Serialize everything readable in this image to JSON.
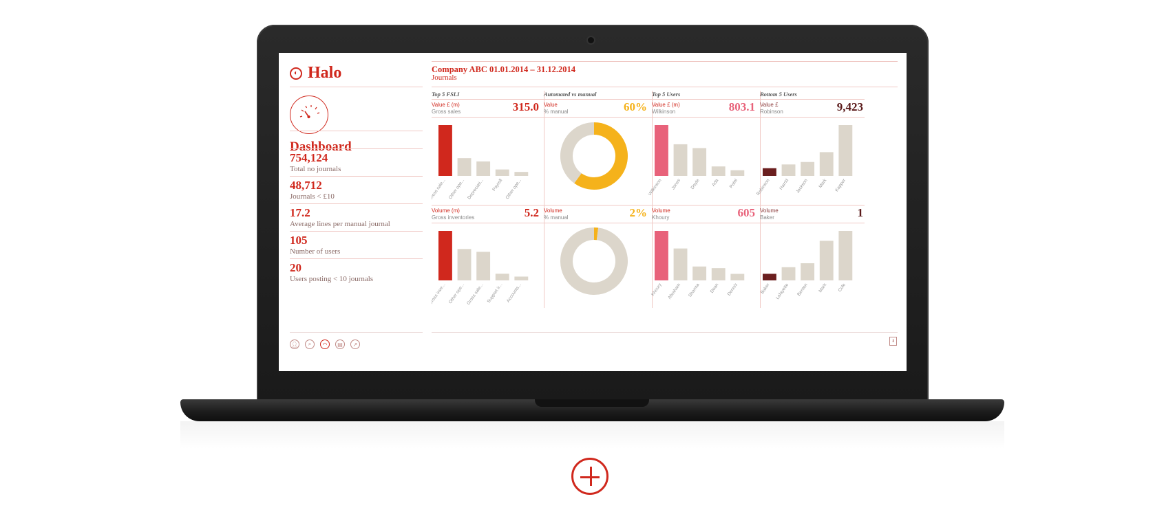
{
  "app": {
    "name": "Halo"
  },
  "header": {
    "title": "Company ABC 01.01.2014 – 31.12.2014",
    "subtitle": "Journals"
  },
  "sidebar": {
    "title": "Dashboard",
    "stats": [
      {
        "value": "754,124",
        "label": "Total no journals"
      },
      {
        "value": "48,712",
        "label": "Journals < £10"
      },
      {
        "value": "17.2",
        "label": "Average lines per manual journal"
      },
      {
        "value": "105",
        "label": "Number of users"
      },
      {
        "value": "20",
        "label": "Users posting < 10 journals"
      }
    ],
    "nav_icons": [
      "user-icon",
      "search-icon",
      "dashboard-icon",
      "document-icon",
      "export-icon"
    ],
    "active_nav": "dashboard-icon"
  },
  "panels": [
    {
      "title": "Top 5 FSLI",
      "top": {
        "label": "Value £ (m)",
        "sub": "Gross sales",
        "value": "315.0"
      },
      "bottom": {
        "label": "Volume (m)",
        "sub": "Gross inventories",
        "value": "5.2"
      }
    },
    {
      "title": "Automated vs manual",
      "top": {
        "label": "Value",
        "sub": "% manual",
        "value": "60%"
      },
      "bottom": {
        "label": "Volume",
        "sub": "% manual",
        "value": "2%"
      }
    },
    {
      "title": "Top 5 Users",
      "top": {
        "label": "Value £ (m)",
        "sub": "Wilkinson",
        "value": "803.1"
      },
      "bottom": {
        "label": "Volume",
        "sub": "Khoury",
        "value": "605"
      }
    },
    {
      "title": "Bottom 5 Users",
      "top": {
        "label": "Value £",
        "sub": "Robinson",
        "value": "9,423"
      },
      "bottom": {
        "label": "Volume",
        "sub": "Baker",
        "value": "1"
      }
    }
  ],
  "colors": {
    "accent": "#d0281d",
    "gold": "#f5b21b",
    "pink": "#e8627a",
    "maroon": "#6b1f1f",
    "neutral": "#dcd6cb",
    "dark_maroon": "#5a1a1a"
  },
  "chart_data": [
    {
      "id": "fsli-value",
      "type": "bar",
      "categories": [
        "Gross sale...",
        "Other ope...",
        "Depreciati...",
        "Payroll",
        "Other ope..."
      ],
      "values": [
        315,
        110,
        90,
        40,
        25
      ],
      "highlight_color": "#d0281d"
    },
    {
      "id": "auto-value",
      "type": "pie",
      "categories": [
        "manual",
        "automated"
      ],
      "values": [
        60,
        40
      ],
      "colors": [
        "#f5b21b",
        "#dcd6cb"
      ]
    },
    {
      "id": "users-value",
      "type": "bar",
      "categories": [
        "Wilkinson",
        "Jones",
        "Doyle",
        "Ada",
        "Patel"
      ],
      "values": [
        803,
        500,
        440,
        150,
        90
      ],
      "highlight_color": "#e8627a"
    },
    {
      "id": "bottom-value",
      "type": "bar",
      "categories": [
        "Robinson",
        "Harrid",
        "Jackson",
        "Mark",
        "Kappor"
      ],
      "values": [
        9423,
        14000,
        17000,
        29000,
        62000
      ],
      "highlight_color": "#6b1f1f"
    },
    {
      "id": "fsli-volume",
      "type": "bar",
      "categories": [
        "Gross inve...",
        "Other ope...",
        "Gross sale...",
        "Support ir...",
        "Accounts..."
      ],
      "values": [
        5.2,
        3.3,
        3.0,
        0.7,
        0.4
      ],
      "highlight_color": "#d0281d"
    },
    {
      "id": "auto-volume",
      "type": "pie",
      "categories": [
        "manual",
        "automated"
      ],
      "values": [
        2,
        98
      ],
      "colors": [
        "#f5b21b",
        "#dcd6cb"
      ]
    },
    {
      "id": "users-volume",
      "type": "bar",
      "categories": [
        "Khoury",
        "Abraham",
        "Sharma",
        "Doan",
        "Dennis"
      ],
      "values": [
        605,
        390,
        170,
        150,
        80
      ],
      "highlight_color": "#e8627a"
    },
    {
      "id": "bottom-volume",
      "type": "bar",
      "categories": [
        "Baker",
        "Lafayette",
        "Benton",
        "Mark",
        "Cole"
      ],
      "values": [
        1,
        2,
        2.6,
        6,
        7.5
      ],
      "highlight_color": "#6b1f1f"
    }
  ]
}
